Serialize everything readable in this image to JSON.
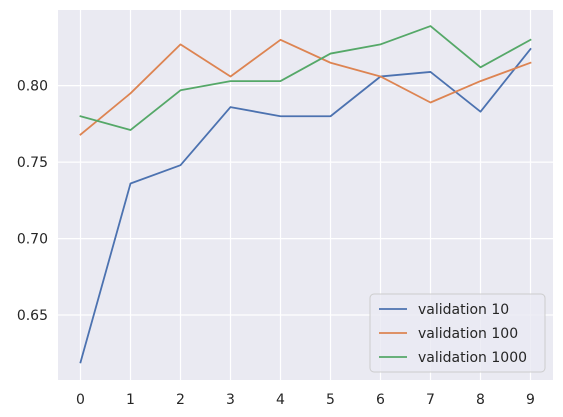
{
  "chart_data": {
    "type": "line",
    "title": "",
    "xlabel": "",
    "ylabel": "",
    "x": [
      0,
      1,
      2,
      3,
      4,
      5,
      6,
      7,
      8,
      9
    ],
    "xlim": [
      -0.45,
      9.45
    ],
    "ylim": [
      0.6075,
      0.8495
    ],
    "xticks": [
      "0",
      "1",
      "2",
      "3",
      "4",
      "5",
      "6",
      "7",
      "8",
      "9"
    ],
    "yticks": [
      "0.65",
      "0.70",
      "0.75",
      "0.80"
    ],
    "grid": true,
    "legend_position": "lower-right",
    "background": "#eaeaf2",
    "series": [
      {
        "name": "validation 10",
        "color": "#4c72b0",
        "values": [
          0.619,
          0.736,
          0.748,
          0.786,
          0.78,
          0.78,
          0.806,
          0.809,
          0.783,
          0.824
        ]
      },
      {
        "name": "validation 100",
        "color": "#dd8452",
        "values": [
          0.768,
          0.795,
          0.827,
          0.806,
          0.83,
          0.815,
          0.806,
          0.789,
          0.803,
          0.815
        ]
      },
      {
        "name": "validation 1000",
        "color": "#55a868",
        "values": [
          0.78,
          0.771,
          0.797,
          0.803,
          0.803,
          0.821,
          0.827,
          0.839,
          0.812,
          0.83
        ]
      }
    ]
  }
}
